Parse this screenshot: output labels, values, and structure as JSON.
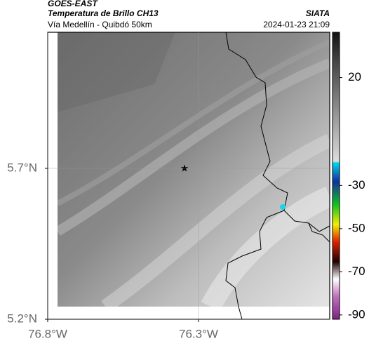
{
  "header": {
    "satellite": "GOES-EAST",
    "title": "Temperatura de Brillo CH13",
    "source": "SIATA",
    "subtitle": "Vía Medellín - Quibdó 50km",
    "datetime": "2024-01-23 21:09"
  },
  "map": {
    "xlim": [
      -76.8,
      -75.865
    ],
    "ylim": [
      5.2,
      6.151
    ],
    "xticks": [
      {
        "value": -76.8,
        "label": "76.8°W"
      },
      {
        "value": -76.3,
        "label": "76.3°W"
      }
    ],
    "yticks": [
      {
        "value": 5.2,
        "label": "5.2°N"
      },
      {
        "value": 5.7,
        "label": "5.7°N"
      }
    ],
    "grid": true
  },
  "colorbar": {
    "lim": [
      -92,
      41
    ],
    "ticks": [
      20,
      -30,
      -50,
      -70,
      -90
    ]
  }
}
